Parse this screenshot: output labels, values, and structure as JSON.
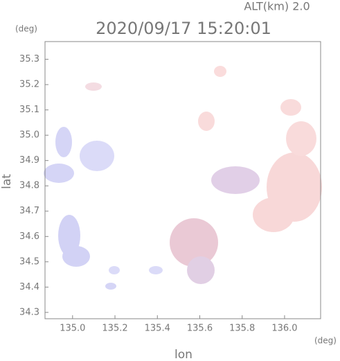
{
  "chart_data": {
    "type": "radar-map",
    "title": "2020/09/17 15:20:01",
    "subtitle": "ALT(km) 2.0",
    "x_label": "lon",
    "y_label": "lat",
    "x_unit": "(deg)",
    "y_unit": "(deg)",
    "xlim": [
      134.87,
      136.17
    ],
    "ylim": [
      34.275,
      35.37
    ],
    "xticks": [
      {
        "value": 135.0,
        "label": "135.0"
      },
      135.2,
      135.4,
      135.6,
      135.8,
      {
        "value": 136.0,
        "label": "136.0"
      }
    ],
    "yticks": [
      34.3,
      34.4,
      34.5,
      34.6,
      34.7,
      34.8,
      34.9,
      {
        "value": 35.0,
        "label": "35.0"
      },
      35.1,
      35.2,
      35.3
    ]
  }
}
